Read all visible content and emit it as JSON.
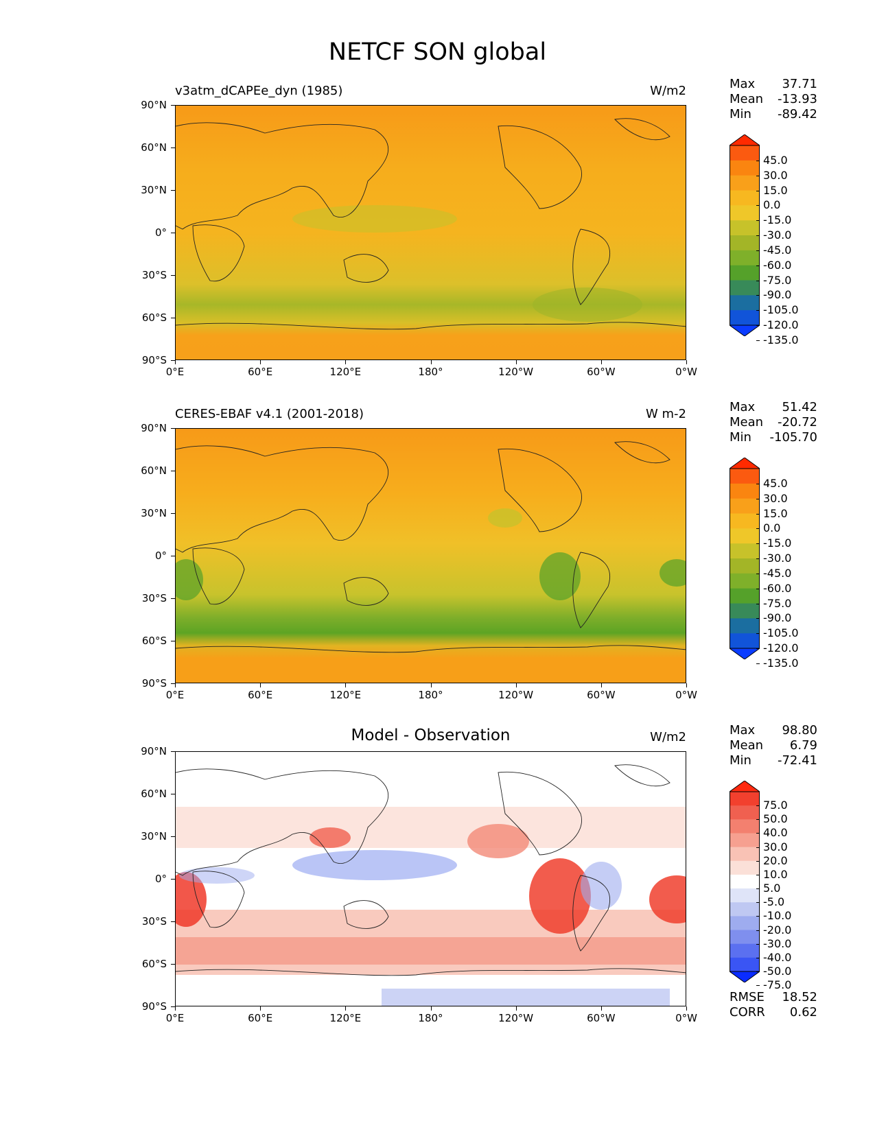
{
  "title": "NETCF SON global",
  "colors": {
    "ocean_base_top": "#f6b21c",
    "ocean_base_bottom": "#f7a51c",
    "diff_white": "#ffffff"
  },
  "axes": {
    "y_labels": [
      "90°N",
      "60°N",
      "30°N",
      "0°",
      "30°S",
      "60°S",
      "90°S"
    ],
    "x_labels": [
      "0°E",
      "60°E",
      "120°E",
      "180°",
      "120°W",
      "60°W",
      "0°W"
    ]
  },
  "panels": [
    {
      "title_left": "v3atm_dCAPEe_dyn (1985)",
      "title_center": "",
      "units": "W/m2",
      "stats": [
        {
          "label": "Max",
          "value": "37.71"
        },
        {
          "label": "Mean",
          "value": "-13.93"
        },
        {
          "label": "Min",
          "value": "-89.42"
        }
      ],
      "colorbar": {
        "labels": [
          "45.0",
          "30.0",
          "15.0",
          "0.0",
          "-15.0",
          "-30.0",
          "-45.0",
          "-60.0",
          "-75.0",
          "-90.0",
          "-105.0",
          "-120.0",
          "-135.0"
        ],
        "colors": [
          "#ff2a00",
          "#fb5a10",
          "#fa8510",
          "#f9a01a",
          "#f7b820",
          "#efc729",
          "#c7c22a",
          "#a3b527",
          "#7fb02a",
          "#55a12a",
          "#388a59",
          "#1b6ea0",
          "#1154d9",
          "#0a3cff"
        ]
      }
    },
    {
      "title_left": "CERES-EBAF v4.1 (2001-2018)",
      "title_center": "",
      "units": "W m-2",
      "stats": [
        {
          "label": "Max",
          "value": "51.42"
        },
        {
          "label": "Mean",
          "value": "-20.72"
        },
        {
          "label": "Min",
          "value": "-105.70"
        }
      ],
      "colorbar": {
        "labels": [
          "45.0",
          "30.0",
          "15.0",
          "0.0",
          "-15.0",
          "-30.0",
          "-45.0",
          "-60.0",
          "-75.0",
          "-90.0",
          "-105.0",
          "-120.0",
          "-135.0"
        ],
        "colors": [
          "#ff2a00",
          "#fb5a10",
          "#fa8510",
          "#f9a01a",
          "#f7b820",
          "#efc729",
          "#c7c22a",
          "#a3b527",
          "#7fb02a",
          "#55a12a",
          "#388a59",
          "#1b6ea0",
          "#1154d9",
          "#0a3cff"
        ]
      }
    },
    {
      "title_left": "",
      "title_center": "Model - Observation",
      "units": "W/m2",
      "stats": [
        {
          "label": "Max",
          "value": "98.80"
        },
        {
          "label": "Mean",
          "value": "6.79"
        },
        {
          "label": "Min",
          "value": "-72.41"
        }
      ],
      "extra_stats": [
        {
          "label": "RMSE",
          "value": "18.52"
        },
        {
          "label": "CORR",
          "value": "0.62"
        }
      ],
      "colorbar": {
        "labels": [
          "75.0",
          "50.0",
          "40.0",
          "30.0",
          "20.0",
          "10.0",
          "5.0",
          "-5.0",
          "-10.0",
          "-20.0",
          "-30.0",
          "-40.0",
          "-50.0",
          "-75.0"
        ],
        "colors": [
          "#ff2a10",
          "#f2402e",
          "#f06050",
          "#f3806f",
          "#f6a090",
          "#f9c2b5",
          "#fbe0d8",
          "#ffffff",
          "#dfe4f8",
          "#bfc8f2",
          "#9eacef",
          "#7f8fee",
          "#5b70f0",
          "#3a55f4",
          "#0a2cff"
        ]
      }
    }
  ]
}
